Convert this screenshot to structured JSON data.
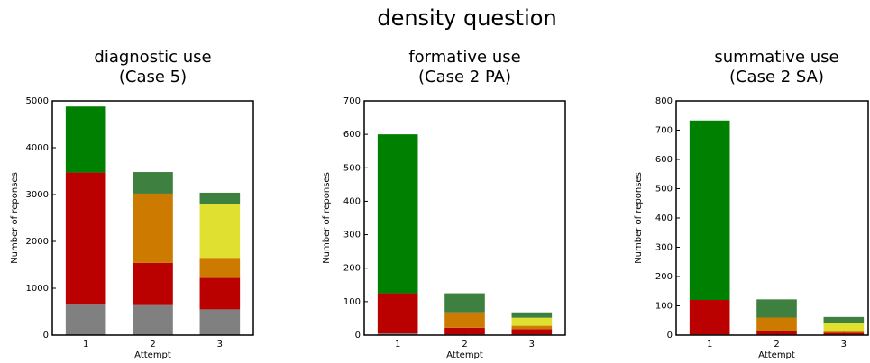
{
  "title": "density question",
  "chart_data": [
    {
      "type": "bar",
      "stacked": true,
      "title": [
        "diagnostic use",
        "(Case 5)"
      ],
      "x_label": "Attempt",
      "y_label": "Number of reponses",
      "categories": [
        "1",
        "2",
        "3"
      ],
      "ylim": [
        0,
        5000
      ],
      "yticks": [
        0,
        1000,
        2000,
        3000,
        4000,
        5000
      ],
      "series": [
        {
          "color": "#808080",
          "values": [
            650,
            640,
            550
          ]
        },
        {
          "color": "#bb0000",
          "values": [
            2820,
            900,
            670
          ]
        },
        {
          "color": "#cc7a00",
          "values": [
            0,
            1480,
            430
          ]
        },
        {
          "color": "#e0e030",
          "values": [
            0,
            0,
            1150
          ]
        },
        {
          "color": "#008000",
          "values": [
            1410,
            0,
            0
          ]
        },
        {
          "color": "#3e8040",
          "values": [
            0,
            460,
            240
          ]
        }
      ]
    },
    {
      "type": "bar",
      "stacked": true,
      "title": [
        "formative use",
        "(Case 2 PA)"
      ],
      "x_label": "Attempt",
      "y_label": "Number of reponses",
      "categories": [
        "1",
        "2",
        "3"
      ],
      "ylim": [
        0,
        700
      ],
      "yticks": [
        0,
        100,
        200,
        300,
        400,
        500,
        600,
        700
      ],
      "series": [
        {
          "color": "#808080",
          "values": [
            5,
            2,
            2
          ]
        },
        {
          "color": "#bb0000",
          "values": [
            120,
            20,
            16
          ]
        },
        {
          "color": "#cc7a00",
          "values": [
            0,
            46,
            10
          ]
        },
        {
          "color": "#e0e030",
          "values": [
            0,
            0,
            24
          ]
        },
        {
          "color": "#008000",
          "values": [
            475,
            0,
            0
          ]
        },
        {
          "color": "#3e8040",
          "values": [
            0,
            57,
            16
          ]
        }
      ]
    },
    {
      "type": "bar",
      "stacked": true,
      "title": [
        "summative use",
        "(Case 2 SA)"
      ],
      "x_label": "Attempt",
      "y_label": "Number of reponses",
      "categories": [
        "1",
        "2",
        "3"
      ],
      "ylim": [
        0,
        800
      ],
      "yticks": [
        0,
        100,
        200,
        300,
        400,
        500,
        600,
        700,
        800
      ],
      "series": [
        {
          "color": "#808080",
          "values": [
            2,
            2,
            2
          ]
        },
        {
          "color": "#bb0000",
          "values": [
            118,
            11,
            6
          ]
        },
        {
          "color": "#cc7a00",
          "values": [
            0,
            47,
            4
          ]
        },
        {
          "color": "#e0e030",
          "values": [
            0,
            0,
            28
          ]
        },
        {
          "color": "#008000",
          "values": [
            613,
            0,
            0
          ]
        },
        {
          "color": "#3e8040",
          "values": [
            0,
            62,
            22
          ]
        }
      ]
    }
  ]
}
